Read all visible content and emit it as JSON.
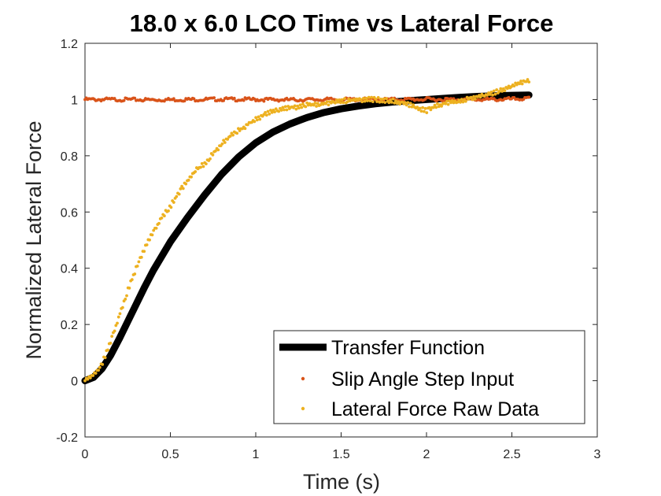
{
  "chart_data": {
    "type": "line",
    "title": "18.0 x 6.0 LCO Time vs Lateral Force",
    "xlabel": "Time (s)",
    "ylabel": "Normalized Lateral Force",
    "xlim": [
      0,
      3
    ],
    "ylim": [
      -0.2,
      1.2
    ],
    "xticks": [
      0,
      0.5,
      1,
      1.5,
      2,
      2.5,
      3
    ],
    "xtick_labels": [
      "0",
      "0.5",
      "1",
      "1.5",
      "2",
      "2.5",
      "3"
    ],
    "yticks": [
      -0.2,
      0,
      0.2,
      0.4,
      0.6,
      0.8,
      1,
      1.2
    ],
    "ytick_labels": [
      "-0.2",
      "0",
      "0.2",
      "0.4",
      "0.6",
      "0.8",
      "1",
      "1.2"
    ],
    "grid": false,
    "legend": {
      "placement": "bottom-right"
    },
    "series": [
      {
        "name": "Transfer Function",
        "style": "thick-line",
        "color": "#000000",
        "x": [
          0,
          0.05,
          0.1,
          0.15,
          0.2,
          0.25,
          0.3,
          0.35,
          0.4,
          0.5,
          0.6,
          0.7,
          0.8,
          0.9,
          1.0,
          1.1,
          1.2,
          1.3,
          1.4,
          1.5,
          1.6,
          1.7,
          1.8,
          1.9,
          2.0,
          2.1,
          2.2,
          2.3,
          2.4,
          2.5,
          2.6
        ],
        "y": [
          0,
          0.012,
          0.043,
          0.09,
          0.148,
          0.21,
          0.272,
          0.334,
          0.392,
          0.494,
          0.58,
          0.66,
          0.734,
          0.796,
          0.846,
          0.884,
          0.913,
          0.936,
          0.954,
          0.967,
          0.977,
          0.985,
          0.991,
          0.996,
          1.0,
          1.004,
          1.008,
          1.011,
          1.013,
          1.015,
          1.016
        ]
      },
      {
        "name": "Slip Angle Step Input",
        "style": "dots",
        "color": "#D95319",
        "x": [
          0,
          0.2,
          0.4,
          0.6,
          0.8,
          1.0,
          1.2,
          1.4,
          1.6,
          1.8,
          2.0,
          2.2,
          2.4,
          2.6
        ],
        "y": [
          1.0,
          1.0,
          0.999,
          1.0,
          1.001,
          1.0,
          0.999,
          1.0,
          1.0,
          1.0,
          1.001,
          1.0,
          1.0,
          1.003
        ]
      },
      {
        "name": "Lateral Force Raw Data",
        "style": "dots",
        "color": "#EDB120",
        "x": [
          0,
          0.05,
          0.1,
          0.15,
          0.2,
          0.25,
          0.3,
          0.35,
          0.4,
          0.45,
          0.5,
          0.55,
          0.6,
          0.65,
          0.7,
          0.75,
          0.8,
          0.85,
          0.9,
          0.95,
          1.0,
          1.05,
          1.1,
          1.2,
          1.3,
          1.4,
          1.5,
          1.6,
          1.7,
          1.8,
          1.9,
          1.95,
          2.0,
          2.05,
          2.1,
          2.2,
          2.3,
          2.4,
          2.5,
          2.55,
          2.6
        ],
        "y": [
          0,
          0.02,
          0.06,
          0.14,
          0.23,
          0.32,
          0.4,
          0.47,
          0.53,
          0.58,
          0.62,
          0.67,
          0.71,
          0.75,
          0.77,
          0.81,
          0.84,
          0.87,
          0.89,
          0.91,
          0.93,
          0.945,
          0.96,
          0.97,
          0.98,
          0.985,
          0.995,
          1.0,
          1.0,
          0.995,
          0.98,
          0.97,
          0.96,
          0.975,
          0.985,
          0.995,
          1.01,
          1.025,
          1.045,
          1.06,
          1.07
        ]
      }
    ]
  }
}
